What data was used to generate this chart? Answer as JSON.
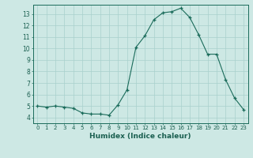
{
  "x": [
    0,
    1,
    2,
    3,
    4,
    5,
    6,
    7,
    8,
    9,
    10,
    11,
    12,
    13,
    14,
    15,
    16,
    17,
    18,
    19,
    20,
    21,
    22,
    23
  ],
  "y": [
    5.0,
    4.9,
    5.0,
    4.9,
    4.8,
    4.4,
    4.3,
    4.3,
    4.2,
    5.1,
    6.4,
    10.1,
    11.1,
    12.5,
    13.1,
    13.2,
    13.5,
    12.7,
    11.2,
    9.5,
    9.5,
    7.3,
    5.7,
    4.7
  ],
  "title": "",
  "xlabel": "Humidex (Indice chaleur)",
  "ylabel": "",
  "xlim": [
    -0.5,
    23.5
  ],
  "ylim": [
    3.5,
    13.8
  ],
  "yticks": [
    4,
    5,
    6,
    7,
    8,
    9,
    10,
    11,
    12,
    13
  ],
  "xticks": [
    0,
    1,
    2,
    3,
    4,
    5,
    6,
    7,
    8,
    9,
    10,
    11,
    12,
    13,
    14,
    15,
    16,
    17,
    18,
    19,
    20,
    21,
    22,
    23
  ],
  "line_color": "#1a6b5a",
  "marker_color": "#1a6b5a",
  "bg_color": "#cde8e4",
  "grid_color": "#a8d0cc",
  "axis_color": "#1a6b5a",
  "label_color": "#1a5f50"
}
